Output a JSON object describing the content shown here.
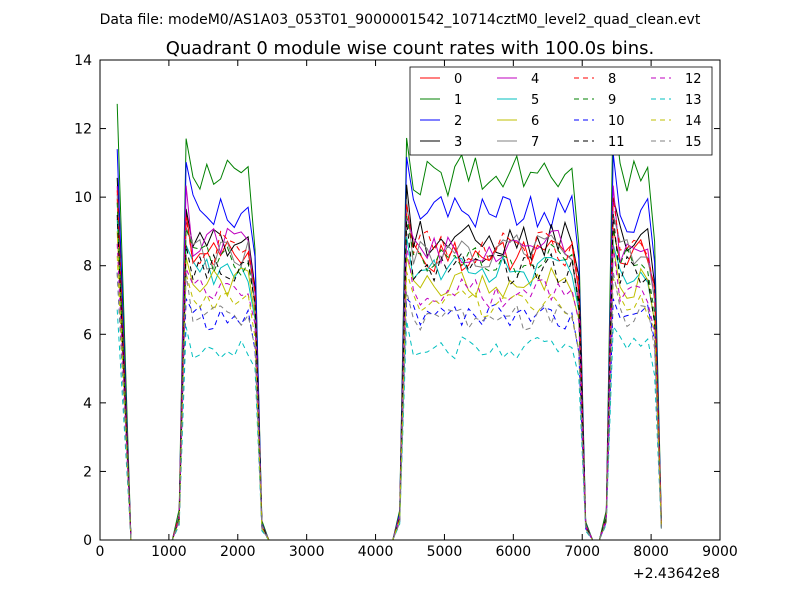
{
  "chart_data": {
    "type": "line",
    "suptitle": "Data file: modeM0/AS1A03_053T01_9000001542_10714cztM0_level2_quad_clean.evt",
    "title": "Quadrant 0 module wise count rates with 100.0s bins.",
    "xlabel": "",
    "ylabel": "",
    "x_offset_label": "+2.43642e8",
    "xlim": [
      0,
      9000
    ],
    "ylim": [
      0,
      14
    ],
    "xticks": [
      "0",
      "1000",
      "2000",
      "3000",
      "4000",
      "5000",
      "6000",
      "7000",
      "8000",
      "9000"
    ],
    "yticks": [
      "0",
      "2",
      "4",
      "6",
      "8",
      "10",
      "12",
      "14"
    ],
    "grid": false,
    "legend_placement": "top-right",
    "series": [
      {
        "name": "0",
        "color": "#ff0000",
        "dash": "solid",
        "level": 8.3
      },
      {
        "name": "1",
        "color": "#008000",
        "dash": "solid",
        "level": 10.6
      },
      {
        "name": "2",
        "color": "#0000ff",
        "dash": "solid",
        "level": 9.5
      },
      {
        "name": "3",
        "color": "#000000",
        "dash": "solid",
        "level": 8.8
      },
      {
        "name": "4",
        "color": "#bf00bf",
        "dash": "solid",
        "level": 8.6
      },
      {
        "name": "5",
        "color": "#00bfbf",
        "dash": "solid",
        "level": 7.8
      },
      {
        "name": "6",
        "color": "#bfbf00",
        "dash": "solid",
        "level": 7.5
      },
      {
        "name": "7",
        "color": "#808080",
        "dash": "solid",
        "level": 8.4
      },
      {
        "name": "8",
        "color": "#ff0000",
        "dash": "dashed",
        "level": 8.5
      },
      {
        "name": "9",
        "color": "#008000",
        "dash": "dashed",
        "level": 8.2
      },
      {
        "name": "10",
        "color": "#0000ff",
        "dash": "dashed",
        "level": 6.5
      },
      {
        "name": "11",
        "color": "#000000",
        "dash": "dashed",
        "level": 7.9
      },
      {
        "name": "12",
        "color": "#bf00bf",
        "dash": "dashed",
        "level": 7.2
      },
      {
        "name": "13",
        "color": "#00bfbf",
        "dash": "dashed",
        "level": 5.6
      },
      {
        "name": "14",
        "color": "#bfbf00",
        "dash": "dashed",
        "level": 6.9
      },
      {
        "name": "15",
        "color": "#808080",
        "dash": "dashed",
        "level": 6.5
      }
    ],
    "segments": [
      {
        "start": 250,
        "end": 450,
        "peak_scale": 1.2
      },
      {
        "start": 1150,
        "end": 2350,
        "peak_scale": 1.0
      },
      {
        "start": 4350,
        "end": 7050,
        "peak_scale": 1.0
      },
      {
        "start": 7350,
        "end": 8150,
        "peak_scale": 1.0
      }
    ]
  }
}
